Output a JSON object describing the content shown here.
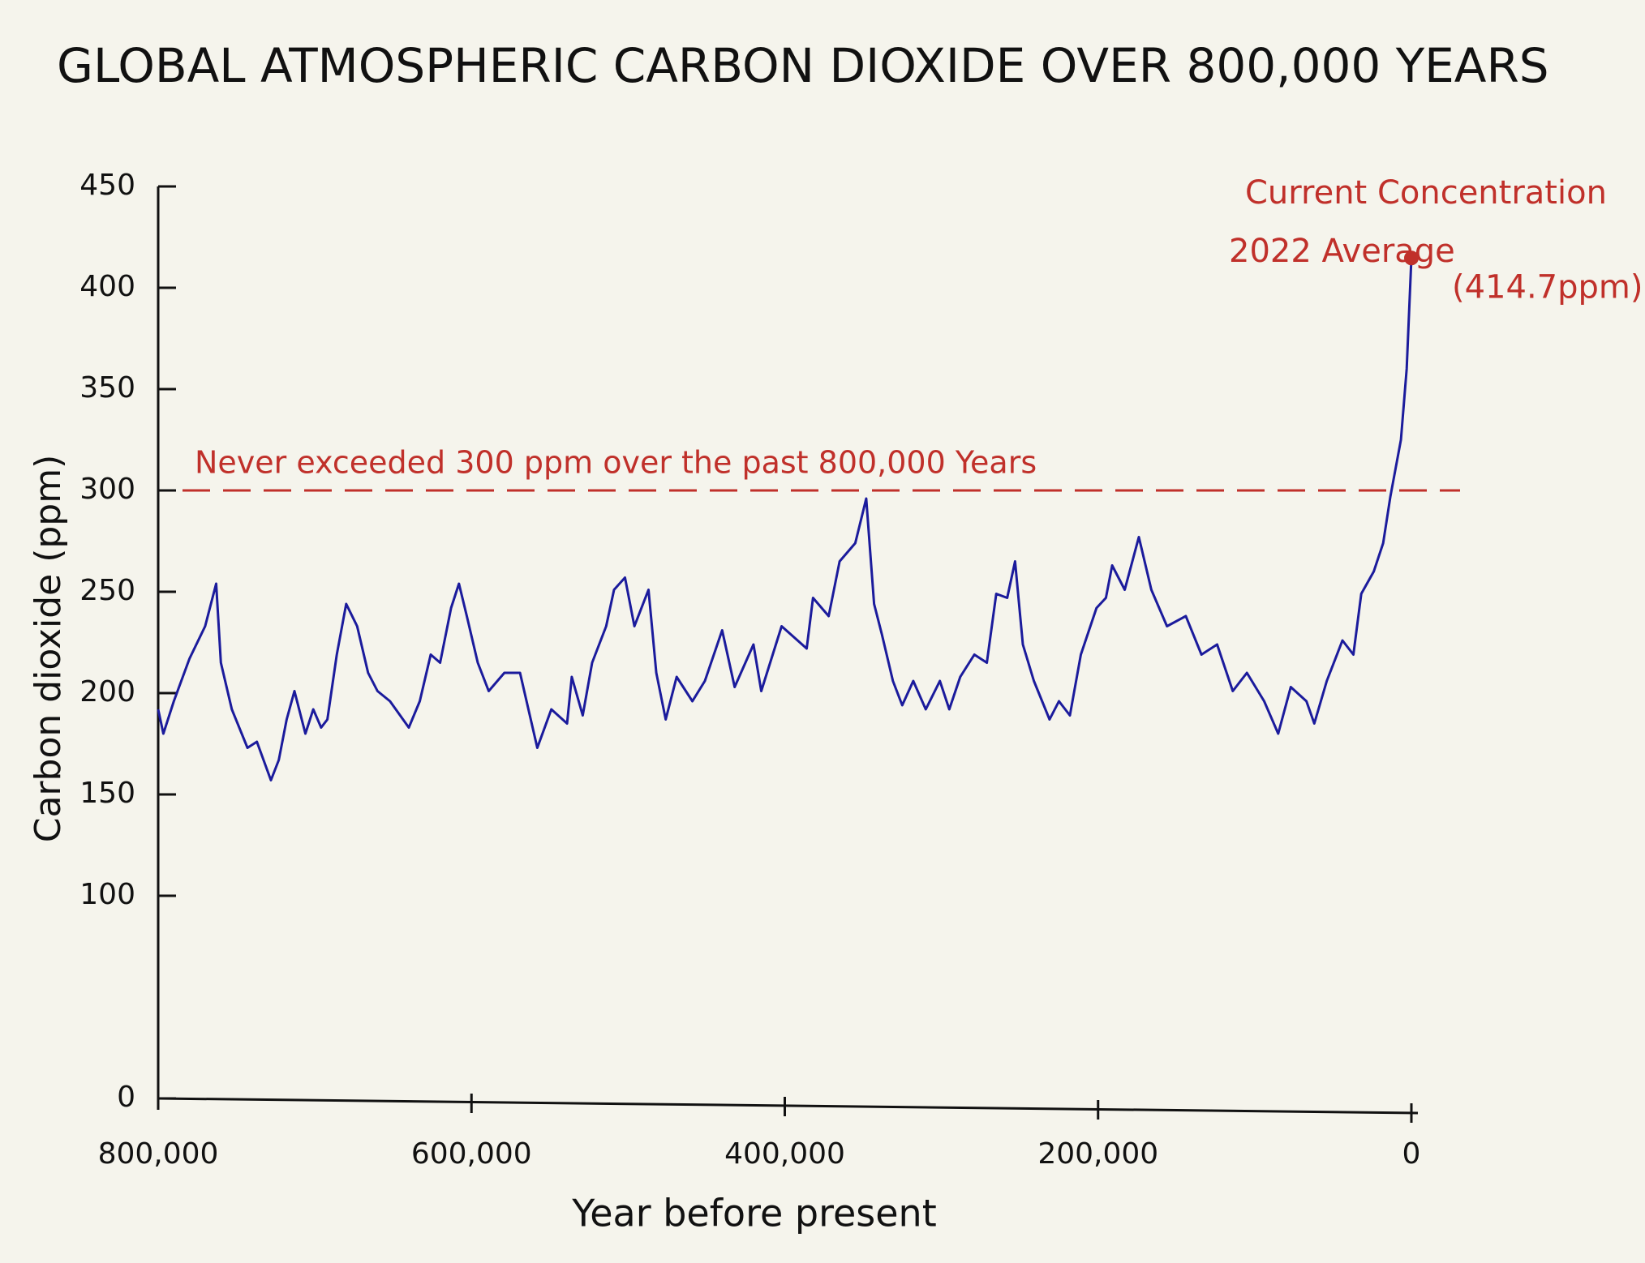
{
  "chart_data": {
    "type": "line",
    "title": "GLOBAL ATMOSPHERIC CARBON DIOXIDE OVER 800,000 YEARS",
    "x_label": "Year before present",
    "y_label": "Carbon dioxide (ppm)",
    "x": [
      800000,
      796700,
      790000,
      780000,
      770000,
      763000,
      760000,
      753000,
      743000,
      737000,
      728000,
      723000,
      718000,
      713000,
      706000,
      701000,
      696000,
      692000,
      686000,
      680000,
      673000,
      666000,
      660000,
      652000,
      640000,
      633000,
      626000,
      620000,
      613000,
      608000,
      603000,
      596000,
      589000,
      579000,
      569000,
      558000,
      549000,
      539000,
      536000,
      529000,
      523000,
      514000,
      509000,
      502000,
      496000,
      487000,
      482000,
      476000,
      469000,
      459000,
      451000,
      440000,
      432000,
      420000,
      415000,
      402000,
      386000,
      382000,
      372000,
      365000,
      355000,
      348000,
      343000,
      338000,
      331000,
      325000,
      318000,
      310000,
      301000,
      295000,
      288000,
      279000,
      271000,
      265000,
      258000,
      253000,
      248000,
      241000,
      231000,
      225000,
      218000,
      211000,
      201000,
      195000,
      191000,
      183000,
      174000,
      166000,
      156000,
      144000,
      134000,
      124000,
      114000,
      105000,
      94000,
      85000,
      77000,
      67000,
      62000,
      54000,
      44000,
      37000,
      32000,
      24000,
      18000,
      13400,
      6700,
      3000,
      0
    ],
    "values": [
      192,
      180,
      196,
      217,
      233,
      254,
      215,
      192,
      173,
      176,
      157,
      167,
      187,
      201,
      180,
      192,
      183,
      187,
      219,
      244,
      233,
      210,
      201,
      196,
      183,
      196,
      219,
      215,
      242,
      254,
      238,
      215,
      201,
      210,
      210,
      173,
      192,
      185,
      208,
      189,
      215,
      233,
      251,
      257,
      233,
      251,
      210,
      187,
      208,
      196,
      206,
      231,
      203,
      224,
      201,
      233,
      222,
      247,
      238,
      265,
      274,
      296,
      244,
      229,
      206,
      194,
      206,
      192,
      206,
      192,
      208,
      219,
      215,
      249,
      247,
      265,
      224,
      206,
      187,
      196,
      189,
      219,
      242,
      247,
      263,
      251,
      277,
      251,
      233,
      238,
      219,
      224,
      201,
      210,
      196,
      180,
      203,
      196,
      185,
      206,
      226,
      219,
      249,
      260,
      274,
      297,
      325,
      360,
      414.7
    ],
    "color": "#1b1b9c",
    "xlim": [
      800000,
      0
    ],
    "xticks": [
      {
        "value": 800000,
        "label": "800,000"
      },
      {
        "value": 600000,
        "label": "600,000"
      },
      {
        "value": 400000,
        "label": "400,000"
      },
      {
        "value": 200000,
        "label": "200,000"
      },
      0
    ],
    "ylim": [
      0,
      450
    ],
    "yticks": [
      0,
      100,
      150,
      200,
      250,
      300,
      350,
      400,
      450
    ],
    "reference_line": {
      "y": 300,
      "color": "#c0302a",
      "text": "Never exceeded 300 ppm over the past 800,000 Years"
    },
    "current_annotation": {
      "color": "#c0302a",
      "lines": [
        "Current Concentration",
        "2022 Average",
        "(414.7ppm)"
      ]
    }
  }
}
